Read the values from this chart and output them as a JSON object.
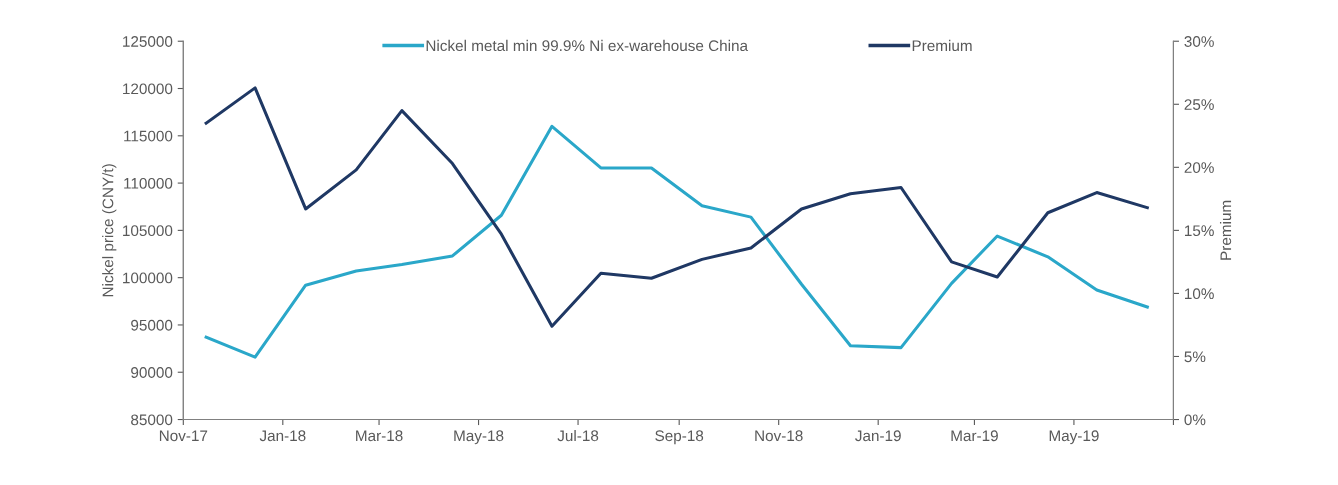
{
  "chart_data": {
    "type": "line",
    "ylabel": "Nickel price (CNY/t)",
    "y2label": "Premium",
    "x": [
      "2017-11-15",
      "2017-12-15",
      "2018-01-15",
      "2018-02-15",
      "2018-03-15",
      "2018-04-15",
      "2018-05-15",
      "2018-06-15",
      "2018-07-15",
      "2018-08-15",
      "2018-09-15",
      "2018-10-15",
      "2018-11-15",
      "2018-12-15",
      "2019-01-15",
      "2019-02-15",
      "2019-03-15",
      "2019-04-15",
      "2019-05-15",
      "2019-06-15"
    ],
    "xlim": [
      "2017-11-01",
      "2019-07-01"
    ],
    "xticks": [
      {
        "value": "2017-11-01",
        "label": "Nov-17"
      },
      {
        "value": "2018-01-01",
        "label": "Jan-18"
      },
      {
        "value": "2018-03-01",
        "label": "Mar-18"
      },
      {
        "value": "2018-05-01",
        "label": "May-18"
      },
      {
        "value": "2018-07-01",
        "label": "Jul-18"
      },
      {
        "value": "2018-09-01",
        "label": "Sep-18"
      },
      {
        "value": "2018-11-01",
        "label": "Nov-18"
      },
      {
        "value": "2019-01-01",
        "label": "Jan-19"
      },
      {
        "value": "2019-03-01",
        "label": "Mar-19"
      },
      {
        "value": "2019-05-01",
        "label": "May-19"
      },
      {
        "value": "2019-07-01",
        "label": null
      }
    ],
    "series": [
      {
        "name": "Nickel metal min 99.9% Ni ex-warehouse China",
        "color": "#2aa7c9",
        "values": [
          93700,
          91600,
          99200,
          100700,
          101400,
          102300,
          106600,
          116000,
          111600,
          111600,
          107600,
          106400,
          99300,
          92800,
          92600,
          99400,
          104400,
          102200,
          98700,
          96900
        ]
      },
      {
        "name": "Premium",
        "color": "#1f3864",
        "axis": "y2",
        "values": [
          23.5,
          26.3,
          16.7,
          19.8,
          24.5,
          20.3,
          14.7,
          7.4,
          11.6,
          11.2,
          12.7,
          13.6,
          16.7,
          17.9,
          18.4,
          12.5,
          11.3,
          16.4,
          18.0,
          16.8
        ]
      }
    ],
    "ylim": [
      85000,
      125000
    ],
    "yticks": [
      85000,
      90000,
      95000,
      100000,
      105000,
      110000,
      115000,
      120000,
      125000
    ],
    "y2lim": [
      0,
      30
    ],
    "y2ticks": [
      {
        "value": 0,
        "label": "0%"
      },
      {
        "value": 5,
        "label": "5%"
      },
      {
        "value": 10,
        "label": "10%"
      },
      {
        "value": 15,
        "label": "15%"
      },
      {
        "value": 20,
        "label": "20%"
      },
      {
        "value": 25,
        "label": "25%"
      },
      {
        "value": 30,
        "label": "30%"
      }
    ],
    "grid": false,
    "legend": "top",
    "marker": "none",
    "line_style": "solid"
  }
}
